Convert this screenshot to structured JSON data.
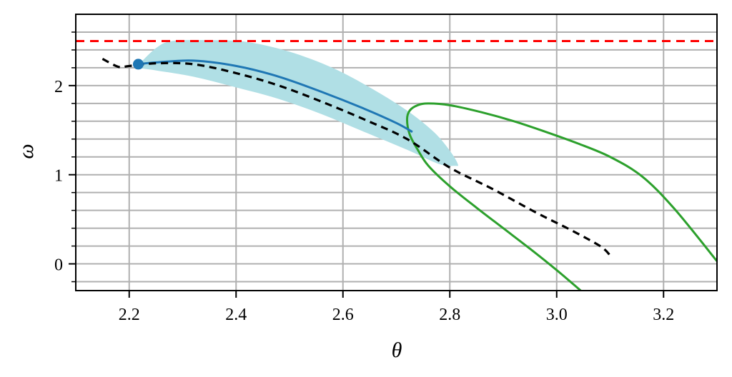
{
  "chart_data": {
    "type": "line",
    "title": "",
    "xlabel": "θ",
    "ylabel": "ω",
    "xlim": [
      2.1,
      3.3
    ],
    "ylim": [
      -0.3,
      2.8
    ],
    "grid": true,
    "legend": null,
    "x_ticks": [
      2.2,
      2.4,
      2.6,
      2.8,
      3.0,
      3.2
    ],
    "x_tick_labels": [
      "2.2",
      "2.4",
      "2.6",
      "2.8",
      "3.0",
      "3.2"
    ],
    "x_grid": [
      2.2,
      2.4,
      2.6,
      2.8,
      3.0,
      3.2
    ],
    "y_ticks": [
      0,
      1,
      2
    ],
    "y_tick_labels": [
      "0",
      "1",
      "2"
    ],
    "y_minor_ticks": [
      -0.2,
      0.2,
      0.4,
      0.6,
      0.8,
      1.2,
      1.4,
      1.6,
      1.8,
      2.2,
      2.4,
      2.6
    ],
    "y_grid": [
      -0.2,
      0,
      0.2,
      0.4,
      0.6,
      0.8,
      1.0,
      1.2,
      1.4,
      1.6,
      1.8,
      2.0,
      2.2,
      2.4,
      2.6
    ],
    "series": [
      {
        "name": "uncertainty-band",
        "kind": "fill",
        "color": "#b0dfe5",
        "upper": [
          [
            2.22,
            2.25
          ],
          [
            2.25,
            2.42
          ],
          [
            2.28,
            2.5
          ],
          [
            2.35,
            2.51
          ],
          [
            2.42,
            2.49
          ],
          [
            2.5,
            2.38
          ],
          [
            2.58,
            2.2
          ],
          [
            2.65,
            1.98
          ],
          [
            2.72,
            1.72
          ],
          [
            2.77,
            1.48
          ],
          [
            2.8,
            1.27
          ],
          [
            2.815,
            1.12
          ]
        ],
        "lower": [
          [
            2.81,
            1.1
          ],
          [
            2.78,
            1.12
          ],
          [
            2.72,
            1.28
          ],
          [
            2.64,
            1.48
          ],
          [
            2.56,
            1.68
          ],
          [
            2.48,
            1.85
          ],
          [
            2.4,
            1.98
          ],
          [
            2.32,
            2.1
          ],
          [
            2.25,
            2.17
          ],
          [
            2.22,
            2.2
          ]
        ]
      },
      {
        "name": "reference-dashed",
        "kind": "line",
        "color": "#000000",
        "dash": "10,7",
        "width": 3.2,
        "x": [
          2.15,
          2.18,
          2.2,
          2.25,
          2.32,
          2.4,
          2.48,
          2.56,
          2.64,
          2.72,
          2.8,
          2.88,
          2.96,
          3.02,
          3.07,
          3.09,
          3.103
        ],
        "y": [
          2.3,
          2.21,
          2.22,
          2.25,
          2.24,
          2.14,
          2.0,
          1.82,
          1.62,
          1.4,
          1.08,
          0.84,
          0.58,
          0.4,
          0.24,
          0.16,
          0.07
        ]
      },
      {
        "name": "mean-trajectory",
        "kind": "line",
        "color": "#1f77b4",
        "width": 3,
        "x": [
          2.217,
          2.25,
          2.32,
          2.4,
          2.48,
          2.56,
          2.64,
          2.7,
          2.73
        ],
        "y": [
          2.24,
          2.26,
          2.28,
          2.22,
          2.1,
          1.93,
          1.74,
          1.58,
          1.48
        ]
      },
      {
        "name": "start-point",
        "kind": "marker",
        "color": "#1f77b4",
        "x": 2.217,
        "y": 2.24,
        "radius": 7.5
      },
      {
        "name": "limit-line",
        "kind": "hline",
        "color": "#ff0000",
        "dash": "12,8",
        "width": 3,
        "y": 2.5
      },
      {
        "name": "boundary-curve",
        "kind": "line",
        "color": "#2ca02c",
        "width": 3,
        "x": [
          3.045,
          3.0,
          2.95,
          2.9,
          2.85,
          2.8,
          2.76,
          2.74,
          2.725,
          2.72,
          2.725,
          2.74,
          2.76,
          2.8,
          2.86,
          2.92,
          2.98,
          3.04,
          3.1,
          3.16,
          3.22,
          3.3
        ],
        "y": [
          -0.3,
          -0.07,
          0.17,
          0.4,
          0.63,
          0.87,
          1.1,
          1.28,
          1.45,
          1.62,
          1.72,
          1.78,
          1.8,
          1.78,
          1.7,
          1.6,
          1.48,
          1.35,
          1.2,
          0.98,
          0.62,
          0.03
        ]
      }
    ]
  }
}
